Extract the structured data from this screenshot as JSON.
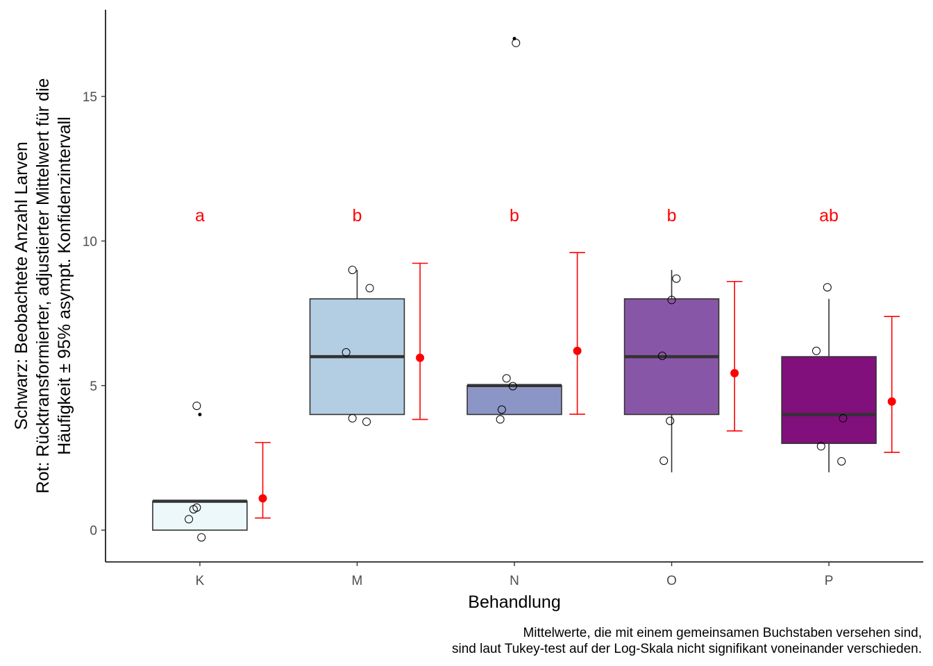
{
  "chart_data": {
    "type": "boxplot",
    "xlabel": "Behandlung",
    "ylabel_lines": [
      "Schwarz: Beobachtete Anzahl Larven",
      "Rot: Rücktransformierter, adjustierter Mittelwert für die",
      "Häufigkeit ± 95% asympt. Konfidenzintervall"
    ],
    "ylim": [
      -1.1,
      18.0
    ],
    "y_ticks": [
      0,
      5,
      10,
      15
    ],
    "categories": [
      "K",
      "M",
      "N",
      "O",
      "P"
    ],
    "box_colors": [
      "#edf8fb",
      "#b3cde3",
      "#8c96c6",
      "#8856a7",
      "#810f7c"
    ],
    "boxes": [
      {
        "category": "K",
        "lower_whisker": 0,
        "q1": 0,
        "median": 1,
        "q3": 1,
        "upper_whisker": 1
      },
      {
        "category": "M",
        "lower_whisker": 4,
        "q1": 4,
        "median": 6,
        "q3": 8,
        "upper_whisker": 9
      },
      {
        "category": "N",
        "lower_whisker": 4,
        "q1": 4,
        "median": 5,
        "q3": 5,
        "upper_whisker": 5
      },
      {
        "category": "O",
        "lower_whisker": 2,
        "q1": 4,
        "median": 6,
        "q3": 8,
        "upper_whisker": 9
      },
      {
        "category": "P",
        "lower_whisker": 2,
        "q1": 3,
        "median": 4,
        "q3": 6,
        "upper_whisker": 8
      }
    ],
    "outliers": [
      {
        "category": "K",
        "y": 4
      },
      {
        "category": "N",
        "y": 17
      }
    ],
    "jitter_points": [
      {
        "category": "K",
        "offset": -0.02,
        "y": 4.3
      },
      {
        "category": "K",
        "offset": -0.02,
        "y": 0.78
      },
      {
        "category": "K",
        "offset": -0.04,
        "y": 0.72
      },
      {
        "category": "K",
        "offset": -0.07,
        "y": 0.38
      },
      {
        "category": "K",
        "offset": 0.01,
        "y": -0.25
      },
      {
        "category": "M",
        "offset": -0.03,
        "y": 9.0
      },
      {
        "category": "M",
        "offset": 0.08,
        "y": 8.37
      },
      {
        "category": "M",
        "offset": -0.07,
        "y": 6.15
      },
      {
        "category": "M",
        "offset": -0.03,
        "y": 3.87
      },
      {
        "category": "M",
        "offset": 0.06,
        "y": 3.75
      },
      {
        "category": "N",
        "offset": 0.01,
        "y": 16.85
      },
      {
        "category": "N",
        "offset": -0.05,
        "y": 5.25
      },
      {
        "category": "N",
        "offset": -0.01,
        "y": 4.98
      },
      {
        "category": "N",
        "offset": -0.08,
        "y": 4.17
      },
      {
        "category": "N",
        "offset": -0.09,
        "y": 3.83
      },
      {
        "category": "O",
        "offset": 0.03,
        "y": 8.7
      },
      {
        "category": "O",
        "offset": 0.0,
        "y": 7.96
      },
      {
        "category": "O",
        "offset": -0.06,
        "y": 6.03
      },
      {
        "category": "O",
        "offset": -0.01,
        "y": 3.78
      },
      {
        "category": "O",
        "offset": -0.05,
        "y": 2.4
      },
      {
        "category": "P",
        "offset": -0.01,
        "y": 8.4
      },
      {
        "category": "P",
        "offset": -0.08,
        "y": 6.2
      },
      {
        "category": "P",
        "offset": 0.09,
        "y": 3.87
      },
      {
        "category": "P",
        "offset": -0.05,
        "y": 2.9
      },
      {
        "category": "P",
        "offset": 0.08,
        "y": 2.38
      }
    ],
    "adjusted_means": [
      {
        "category": "K",
        "mean": 1.1,
        "lower": 0.42,
        "upper": 3.03
      },
      {
        "category": "M",
        "mean": 5.96,
        "lower": 3.83,
        "upper": 9.23
      },
      {
        "category": "N",
        "mean": 6.2,
        "lower": 4.01,
        "upper": 9.6
      },
      {
        "category": "O",
        "mean": 5.43,
        "lower": 3.43,
        "upper": 8.6
      },
      {
        "category": "P",
        "mean": 4.45,
        "lower": 2.69,
        "upper": 7.39
      }
    ],
    "mean_offset": 0.4,
    "box_width": 0.6,
    "group_letters": [
      "a",
      "b",
      "b",
      "b",
      "ab"
    ],
    "letter_y": 10.9,
    "mean_color": "#ff0000",
    "caption_lines": [
      "Mittelwerte, die mit einem gemeinsamen Buchstaben versehen sind,",
      "sind laut Tukey-test auf der Log-Skala nicht signifikant voneinander verschieden."
    ]
  }
}
